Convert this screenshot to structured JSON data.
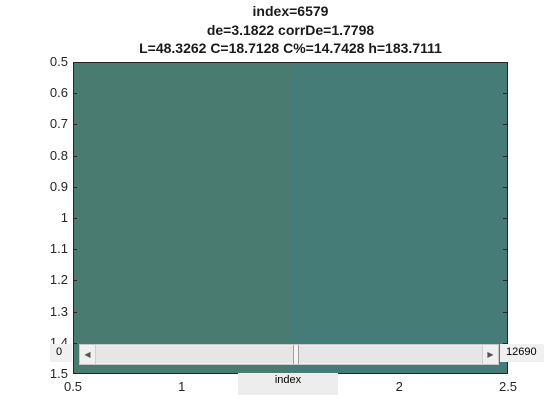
{
  "figure": {
    "title_lines": [
      "index=6579",
      "de=3.1822 corrDe=1.7798",
      "L=48.3262 C=18.7128 C%=14.7428 h=183.7111"
    ]
  },
  "chart_data": {
    "type": "heatmap",
    "title": "index=6579 / de=3.1822 corrDe=1.7798 / L=48.3262 C=18.7128 C%=14.7428 h=183.7111",
    "xlim": [
      0.5,
      2.5
    ],
    "ylim": [
      0.5,
      1.5
    ],
    "y_reversed": true,
    "x_ticks": [
      "0.5",
      "1",
      "1.5",
      "2",
      "2.5"
    ],
    "y_ticks": [
      "0.5",
      "0.6",
      "0.7",
      "0.8",
      "0.9",
      "1",
      "1.1",
      "1.2",
      "1.3",
      "1.4",
      "1.5"
    ],
    "cells": [
      {
        "x": 1,
        "y": 1,
        "color": "#4a7b70"
      },
      {
        "x": 2,
        "y": 1,
        "color": "#457c77"
      }
    ]
  },
  "slider": {
    "min_label": "0",
    "max_label": "12690",
    "label": "index",
    "min": 0,
    "max": 12690,
    "value": 6579
  }
}
